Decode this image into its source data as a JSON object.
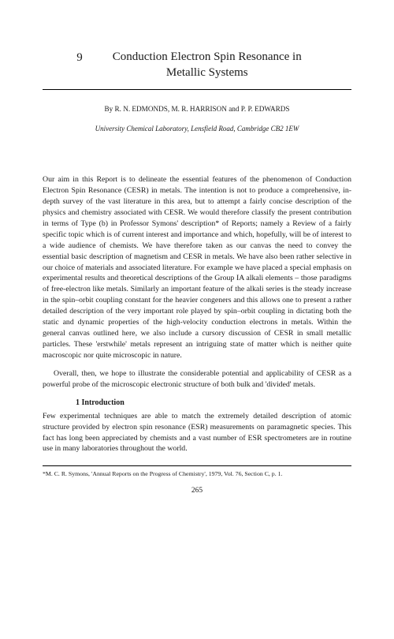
{
  "chapter": {
    "number": "9",
    "title": "Conduction Electron Spin Resonance in Metallic Systems"
  },
  "authors_line": "By R. N. EDMONDS, M. R. HARRISON and P. P. EDWARDS",
  "affiliation": "University Chemical Laboratory, Lensfield Road, Cambridge CB2 1EW",
  "paragraphs": {
    "p1": "Our aim in this Report is to delineate the essential features of the phenomenon of Conduction Electron Spin Resonance (CESR) in metals. The intention is not to produce a comprehensive, in-depth survey of the vast literature in this area, but to attempt a fairly concise description of the physics and chemistry associated with CESR. We would therefore classify the present contribution in terms of Type (b) in Professor Symons' description* of Reports; namely a Review of a fairly specific topic which is of current interest and importance and which, hopefully, will be of interest to a wide audience of chemists. We have therefore taken as our canvas the need to convey the essential basic description of magnetism and CESR in metals. We have also been rather selective in our choice of materials and associated literature. For example we have placed a special emphasis on experimental results and theoretical descriptions of the Group IA alkali elements – those paradigms of free-electron like metals. Similarly an important feature of the alkali series is the steady increase in the spin–orbit coupling constant for the heavier congeners and this allows one to present a rather detailed description of the very important role played by spin–orbit coupling in dictating both the static and dynamic properties of the high-velocity conduction electrons in metals. Within the general canvas outlined here, we also include a cursory discussion of CESR in small metallic particles. These 'erstwhile' metals represent an intriguing state of matter which is neither quite macroscopic nor quite microscopic in nature.",
    "p2": "Overall, then, we hope to illustrate the considerable potential and applicability of CESR as a powerful probe of the microscopic electronic structure of both bulk and 'divided' metals.",
    "section1_heading": "1 Introduction",
    "p3": "Few experimental techniques are able to match the extremely detailed description of atomic structure provided by electron spin resonance (ESR) measurements on paramagnetic species. This fact has long been appreciated by chemists and a vast number of ESR spectrometers are in routine use in many laboratories throughout the world."
  },
  "footnote": "*M. C. R. Symons, 'Annual Reports on the Progress of Chemistry', 1979, Vol. 76, Section C, p. 1.",
  "page_number": "265"
}
